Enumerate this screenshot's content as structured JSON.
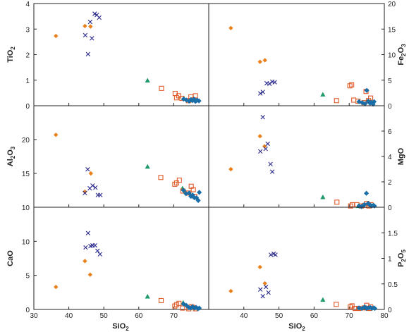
{
  "chart_data": {
    "type": "scatter",
    "layout": "3x2 grid, shared x-axis",
    "x_axis": {
      "label_main": "SiO",
      "label_sub": "2",
      "range": [
        30,
        80
      ],
      "ticks": [
        "30",
        "40",
        "50",
        "60",
        "70",
        "80"
      ]
    },
    "markers": {
      "orange-diamond": {
        "color": "#E8821C"
      },
      "blue-cross": {
        "color": "#2A2A8C"
      },
      "green-triangle": {
        "color": "#1E9A6A"
      },
      "red-open-square": {
        "color": "#E05A28"
      },
      "blue-diamond": {
        "color": "#1A6EA8"
      }
    },
    "panels": [
      {
        "id": "tio2",
        "ylabel_main": "TiO",
        "ylabel_sub": "2",
        "axis_side": "left",
        "ylim": [
          0,
          4
        ],
        "yticks": [
          "0",
          "1",
          "2",
          "3",
          "4"
        ],
        "series": [
          {
            "marker": "orange-diamond",
            "x": [
              36.3,
              44.6,
              46.2
            ],
            "y": [
              2.73,
              3.12,
              3.1
            ]
          },
          {
            "marker": "blue-cross",
            "x": [
              44.7,
              45.5,
              46.1,
              46.6,
              47.4,
              48.0,
              48.7
            ],
            "y": [
              2.76,
              2.02,
              3.28,
              2.64,
              3.6,
              3.55,
              3.45
            ]
          },
          {
            "marker": "green-triangle",
            "x": [
              62.5,
              72.9
            ],
            "y": [
              0.99,
              0.3
            ]
          },
          {
            "marker": "red-open-square",
            "x": [
              66.5,
              70.4,
              70.8,
              71.4,
              72.3,
              74.2,
              74.9,
              75.5,
              76.2
            ],
            "y": [
              0.68,
              0.48,
              0.31,
              0.39,
              0.29,
              0.2,
              0.35,
              0.23,
              0.39
            ]
          },
          {
            "marker": "blue-diamond",
            "x": [
              72.8,
              73.6,
              74.4,
              74.9,
              75.3,
              75.8,
              76.2,
              76.7,
              77.2
            ],
            "y": [
              0.26,
              0.22,
              0.18,
              0.24,
              0.2,
              0.26,
              0.17,
              0.22,
              0.19
            ]
          }
        ]
      },
      {
        "id": "fe2o3",
        "ylabel_main": "Fe",
        "ylabel_sub": "2",
        "ylabel_main2": "O",
        "ylabel_sub2": "3",
        "axis_side": "right",
        "ylim": [
          0,
          20
        ],
        "yticks": [
          "0",
          "5",
          "10",
          "15",
          "20"
        ],
        "series": [
          {
            "marker": "orange-diamond",
            "x": [
              36.3,
              44.6,
              46.0
            ],
            "y": [
              15.2,
              8.6,
              8.9
            ]
          },
          {
            "marker": "blue-cross",
            "x": [
              44.7,
              45.4,
              46.5,
              47.3,
              48.1,
              48.8
            ],
            "y": [
              2.4,
              2.7,
              4.4,
              4.3,
              4.7,
              4.6
            ]
          },
          {
            "marker": "green-triangle",
            "x": [
              62.5,
              72.8
            ],
            "y": [
              2.2,
              0.8
            ]
          },
          {
            "marker": "red-open-square",
            "x": [
              66.4,
              70.2,
              70.7,
              71.3,
              72.5,
              74.2,
              74.8,
              75.5,
              76.1
            ],
            "y": [
              1.0,
              3.9,
              4.1,
              1.1,
              0.9,
              0.6,
              2.8,
              1.0,
              1.5
            ]
          },
          {
            "marker": "blue-diamond",
            "x": [
              72.8,
              73.7,
              74.5,
              75.0,
              75.4,
              75.9,
              76.3,
              76.8,
              77.1
            ],
            "y": [
              0.8,
              0.6,
              0.4,
              3.0,
              0.9,
              0.5,
              0.7,
              0.3,
              0.8
            ]
          }
        ]
      },
      {
        "id": "al2o3",
        "ylabel_main": "Al",
        "ylabel_sub": "2",
        "ylabel_main2": "O",
        "ylabel_sub2": "3",
        "axis_side": "left",
        "ylim": [
          10,
          25
        ],
        "yticks": [
          "10",
          "15",
          "20"
        ],
        "series": [
          {
            "marker": "orange-diamond",
            "x": [
              36.3,
              44.6,
              46.3
            ],
            "y": [
              20.7,
              12.3,
              15.0
            ]
          },
          {
            "marker": "blue-cross",
            "x": [
              44.6,
              45.4,
              46.0,
              46.8,
              47.6,
              48.3,
              49.0
            ],
            "y": [
              12.1,
              15.6,
              12.8,
              13.2,
              12.9,
              11.8,
              11.8
            ]
          },
          {
            "marker": "green-triangle",
            "x": [
              62.5,
              72.5,
              73.2
            ],
            "y": [
              16.0,
              12.8,
              12.4
            ]
          },
          {
            "marker": "red-open-square",
            "x": [
              66.3,
              70.3,
              70.8,
              71.6,
              72.6,
              74.3,
              75.0,
              75.6,
              76.0
            ],
            "y": [
              14.4,
              13.4,
              13.6,
              14.0,
              12.4,
              12.1,
              13.1,
              12.6,
              11.6
            ]
          },
          {
            "marker": "blue-diamond",
            "x": [
              72.8,
              73.5,
              74.4,
              74.9,
              75.4,
              75.9,
              76.5,
              77.0,
              77.3
            ],
            "y": [
              12.5,
              12.0,
              12.1,
              11.6,
              11.8,
              11.4,
              11.4,
              11.0,
              12.2
            ]
          }
        ]
      },
      {
        "id": "mgo",
        "ylabel_main": "MgO",
        "ylabel_sub": "",
        "axis_side": "right",
        "ylim": [
          0,
          8
        ],
        "yticks": [
          "0",
          "2",
          "4",
          "6"
        ],
        "series": [
          {
            "marker": "orange-diamond",
            "x": [
              36.3,
              44.6,
              45.9
            ],
            "y": [
              3.0,
              5.6,
              4.8
            ]
          },
          {
            "marker": "blue-cross",
            "x": [
              44.7,
              45.4,
              46.2,
              46.8,
              47.6,
              48.1
            ],
            "y": [
              4.4,
              7.1,
              4.6,
              5.0,
              3.4,
              2.8
            ]
          },
          {
            "marker": "green-triangle",
            "x": [
              62.5,
              72.6
            ],
            "y": [
              0.8,
              0.1
            ]
          },
          {
            "marker": "red-open-square",
            "x": [
              66.5,
              70.4,
              70.9,
              72.2,
              73.5,
              74.4,
              75.0,
              75.6,
              76.2
            ],
            "y": [
              0.4,
              0.1,
              0.2,
              0.2,
              0.1,
              0.15,
              0.3,
              0.1,
              0.2
            ]
          },
          {
            "marker": "blue-diamond",
            "x": [
              72.8,
              73.5,
              74.3,
              74.9,
              75.4,
              75.9,
              76.4,
              76.9,
              77.2
            ],
            "y": [
              0.1,
              0.05,
              0.2,
              1.1,
              0.3,
              0.2,
              0.1,
              0.15,
              0.1
            ]
          }
        ]
      },
      {
        "id": "cao",
        "ylabel_main": "CaO",
        "ylabel_sub": "",
        "axis_side": "left",
        "ylim": [
          0,
          15
        ],
        "yticks": [
          "0",
          "5",
          "10"
        ],
        "series": [
          {
            "marker": "orange-diamond",
            "x": [
              36.3,
              44.6,
              46.1
            ],
            "y": [
              3.3,
              7.1,
              5.1
            ]
          },
          {
            "marker": "blue-cross",
            "x": [
              44.8,
              45.5,
              46.2,
              46.8,
              47.5,
              48.2,
              48.9
            ],
            "y": [
              9.1,
              11.2,
              9.3,
              9.4,
              9.4,
              8.6,
              8.1
            ]
          },
          {
            "marker": "green-triangle",
            "x": [
              62.5,
              72.7
            ],
            "y": [
              1.9,
              1.0
            ]
          },
          {
            "marker": "red-open-square",
            "x": [
              66.4,
              70.3,
              70.8,
              71.5,
              72.5,
              74.3,
              75.0,
              75.5,
              76.2
            ],
            "y": [
              1.3,
              0.5,
              0.7,
              0.9,
              0.2,
              0.1,
              0.4,
              0.3,
              0.1
            ]
          },
          {
            "marker": "blue-diamond",
            "x": [
              72.8,
              73.6,
              74.3,
              74.9,
              75.4,
              75.9,
              76.4,
              76.9,
              77.3
            ],
            "y": [
              0.8,
              0.6,
              0.3,
              0.2,
              0.4,
              0.2,
              0.3,
              0.1,
              0.2
            ]
          }
        ]
      },
      {
        "id": "p2o5",
        "ylabel_main": "P",
        "ylabel_sub": "2",
        "ylabel_main2": "O",
        "ylabel_sub2": "5",
        "axis_side": "right",
        "ylim": [
          0,
          2
        ],
        "yticks": [
          "0",
          "0.5",
          "1",
          "1.5"
        ],
        "series": [
          {
            "marker": "orange-diamond",
            "x": [
              36.3,
              44.6,
              46.0
            ],
            "y": [
              0.36,
              0.83,
              0.51
            ]
          },
          {
            "marker": "blue-cross",
            "x": [
              44.7,
              45.4,
              46.3,
              47.0,
              47.7,
              48.5,
              49.0
            ],
            "y": [
              0.39,
              0.26,
              0.44,
              0.33,
              1.07,
              1.09,
              1.07
            ]
          },
          {
            "marker": "green-triangle",
            "x": [
              62.5,
              72.8
            ],
            "y": [
              0.19,
              0.03
            ]
          },
          {
            "marker": "red-open-square",
            "x": [
              66.3,
              70.3,
              70.8,
              71.7,
              72.7,
              74.3,
              75.0,
              75.7,
              76.1
            ],
            "y": [
              0.1,
              0.05,
              0.07,
              0.02,
              0.02,
              0.03,
              0.08,
              0.02,
              0.05
            ]
          },
          {
            "marker": "blue-diamond",
            "x": [
              72.8,
              73.6,
              74.4,
              74.9,
              75.4,
              76.0,
              76.5,
              77.0,
              77.3
            ],
            "y": [
              0.03,
              0.02,
              0.05,
              0.02,
              0.03,
              0.04,
              0.02,
              0.03,
              0.02
            ]
          }
        ]
      }
    ]
  }
}
